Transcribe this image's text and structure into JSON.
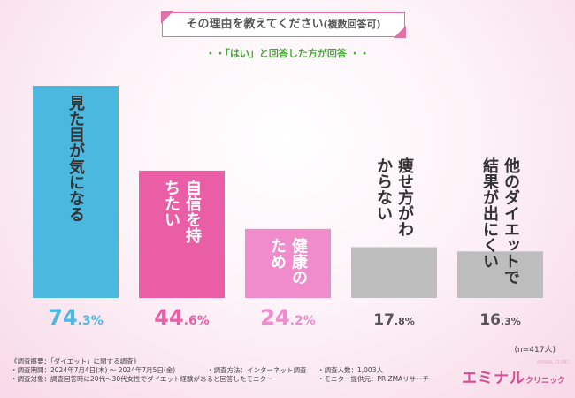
{
  "title": {
    "main": "その理由を教えてください",
    "sub": "(複数回答可)"
  },
  "subtitle": "・・「はい」と回答した方が回答 ・・",
  "n_label": "(n=417人)",
  "chart_data": {
    "type": "bar",
    "title": "その理由を教えてください(複数回答可)",
    "categories": [
      "見た目が気になる",
      "自信を持ちたい",
      "健康のため",
      "痩せ方がわからない",
      "他のダイエットで結果が出にくい"
    ],
    "values": [
      74.3,
      44.6,
      24.2,
      17.8,
      16.3
    ],
    "value_labels": [
      {
        "num": "74",
        "dec": ".3%"
      },
      {
        "num": "44",
        "dec": ".6%"
      },
      {
        "num": "24",
        "dec": ".2%"
      },
      {
        "num": "17",
        "dec": ".8%"
      },
      {
        "num": "16",
        "dec": ".3%"
      }
    ],
    "colors": [
      "#4bb8e0",
      "#ea5ea6",
      "#f08ccb",
      "#bdbdbd",
      "#bdbdbd"
    ],
    "label_colors": [
      "#4bb8e0",
      "#ea5ea6",
      "#f08ccb",
      "#555555",
      "#555555"
    ],
    "category_text_colors": [
      "#333333",
      "#ffffff",
      "#ffffff",
      "#333333",
      "#333333"
    ],
    "ylim": [
      0,
      74.3
    ],
    "xlabel": "",
    "ylabel": ""
  },
  "footnotes": {
    "overview": "《調査概要：「ダイエット」に関する調査》",
    "period": "・調査期間：2024年7月4日(木) ～ 2024年7月5日(金)",
    "method": "・調査方法：インターネット調査",
    "count": "・調査人数：1,003人",
    "target": "・調査対象：調査回答時に20代～30代女性でダイエット経験があると回答したモニター",
    "provider": "・モニター提供元：PRIZMAリサーチ"
  },
  "brand": {
    "main": "エミナル",
    "sub": "クリニック",
    "small": "EMINAL CLINIC"
  }
}
